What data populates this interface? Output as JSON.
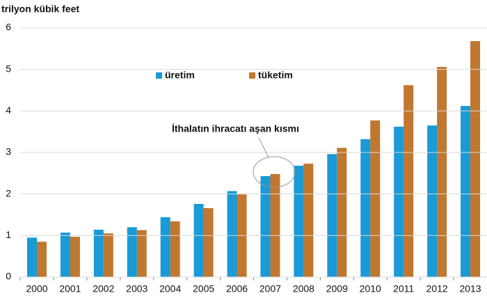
{
  "chart_data": {
    "type": "bar",
    "y_label": "trilyon kübik feet",
    "annotation": "İthalatın ihracatı aşan kısmı",
    "categories": [
      "2000",
      "2001",
      "2002",
      "2003",
      "2004",
      "2005",
      "2006",
      "2007",
      "2008",
      "2009",
      "2010",
      "2011",
      "2012",
      "2013"
    ],
    "series": [
      {
        "name": "üretim",
        "color": "#1a9ad6",
        "values": [
          0.95,
          1.07,
          1.14,
          1.2,
          1.44,
          1.76,
          2.07,
          2.43,
          2.68,
          2.96,
          3.32,
          3.62,
          3.65,
          4.12
        ]
      },
      {
        "name": "tüketim",
        "color": "#c0772f",
        "values": [
          0.85,
          0.97,
          1.05,
          1.13,
          1.34,
          1.66,
          1.99,
          2.48,
          2.73,
          3.11,
          3.77,
          4.62,
          5.06,
          5.68
        ]
      }
    ],
    "ylim": [
      0,
      6
    ],
    "yticks": [
      0,
      1,
      2,
      3,
      4,
      5,
      6
    ],
    "grid": true,
    "legend": "top"
  }
}
